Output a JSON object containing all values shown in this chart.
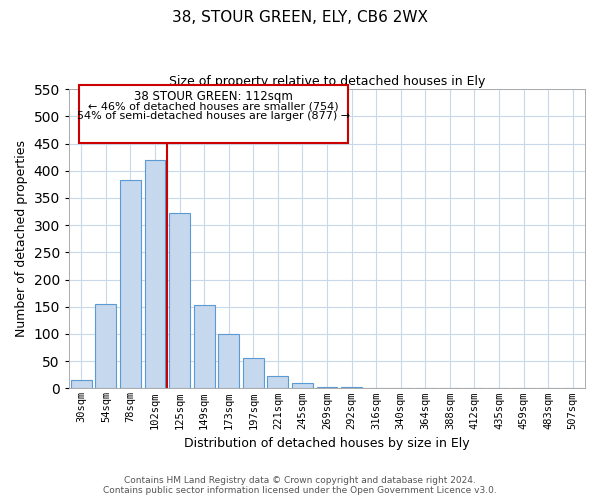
{
  "title": "38, STOUR GREEN, ELY, CB6 2WX",
  "subtitle": "Size of property relative to detached houses in Ely",
  "xlabel": "Distribution of detached houses by size in Ely",
  "ylabel": "Number of detached properties",
  "bar_labels": [
    "30sqm",
    "54sqm",
    "78sqm",
    "102sqm",
    "125sqm",
    "149sqm",
    "173sqm",
    "197sqm",
    "221sqm",
    "245sqm",
    "269sqm",
    "292sqm",
    "316sqm",
    "340sqm",
    "364sqm",
    "388sqm",
    "412sqm",
    "435sqm",
    "459sqm",
    "483sqm",
    "507sqm"
  ],
  "bar_values": [
    15,
    155,
    383,
    420,
    323,
    153,
    100,
    55,
    22,
    10,
    3,
    2,
    1,
    1,
    1,
    1,
    1,
    1,
    1,
    1,
    1
  ],
  "bar_color": "#c5d8ed",
  "bar_edge_color": "#5b9bd5",
  "vline_x": 3.5,
  "vline_color": "#cc0000",
  "ylim": [
    0,
    550
  ],
  "yticks": [
    0,
    50,
    100,
    150,
    200,
    250,
    300,
    350,
    400,
    450,
    500,
    550
  ],
  "annotation_box_title": "38 STOUR GREEN: 112sqm",
  "annotation_line1": "← 46% of detached houses are smaller (754)",
  "annotation_line2": "54% of semi-detached houses are larger (877) →",
  "annotation_box_color": "#ffffff",
  "annotation_box_edge": "#cc0000",
  "footer_line1": "Contains HM Land Registry data © Crown copyright and database right 2024.",
  "footer_line2": "Contains public sector information licensed under the Open Government Licence v3.0.",
  "background_color": "#ffffff",
  "grid_color": "#c8d8e8"
}
